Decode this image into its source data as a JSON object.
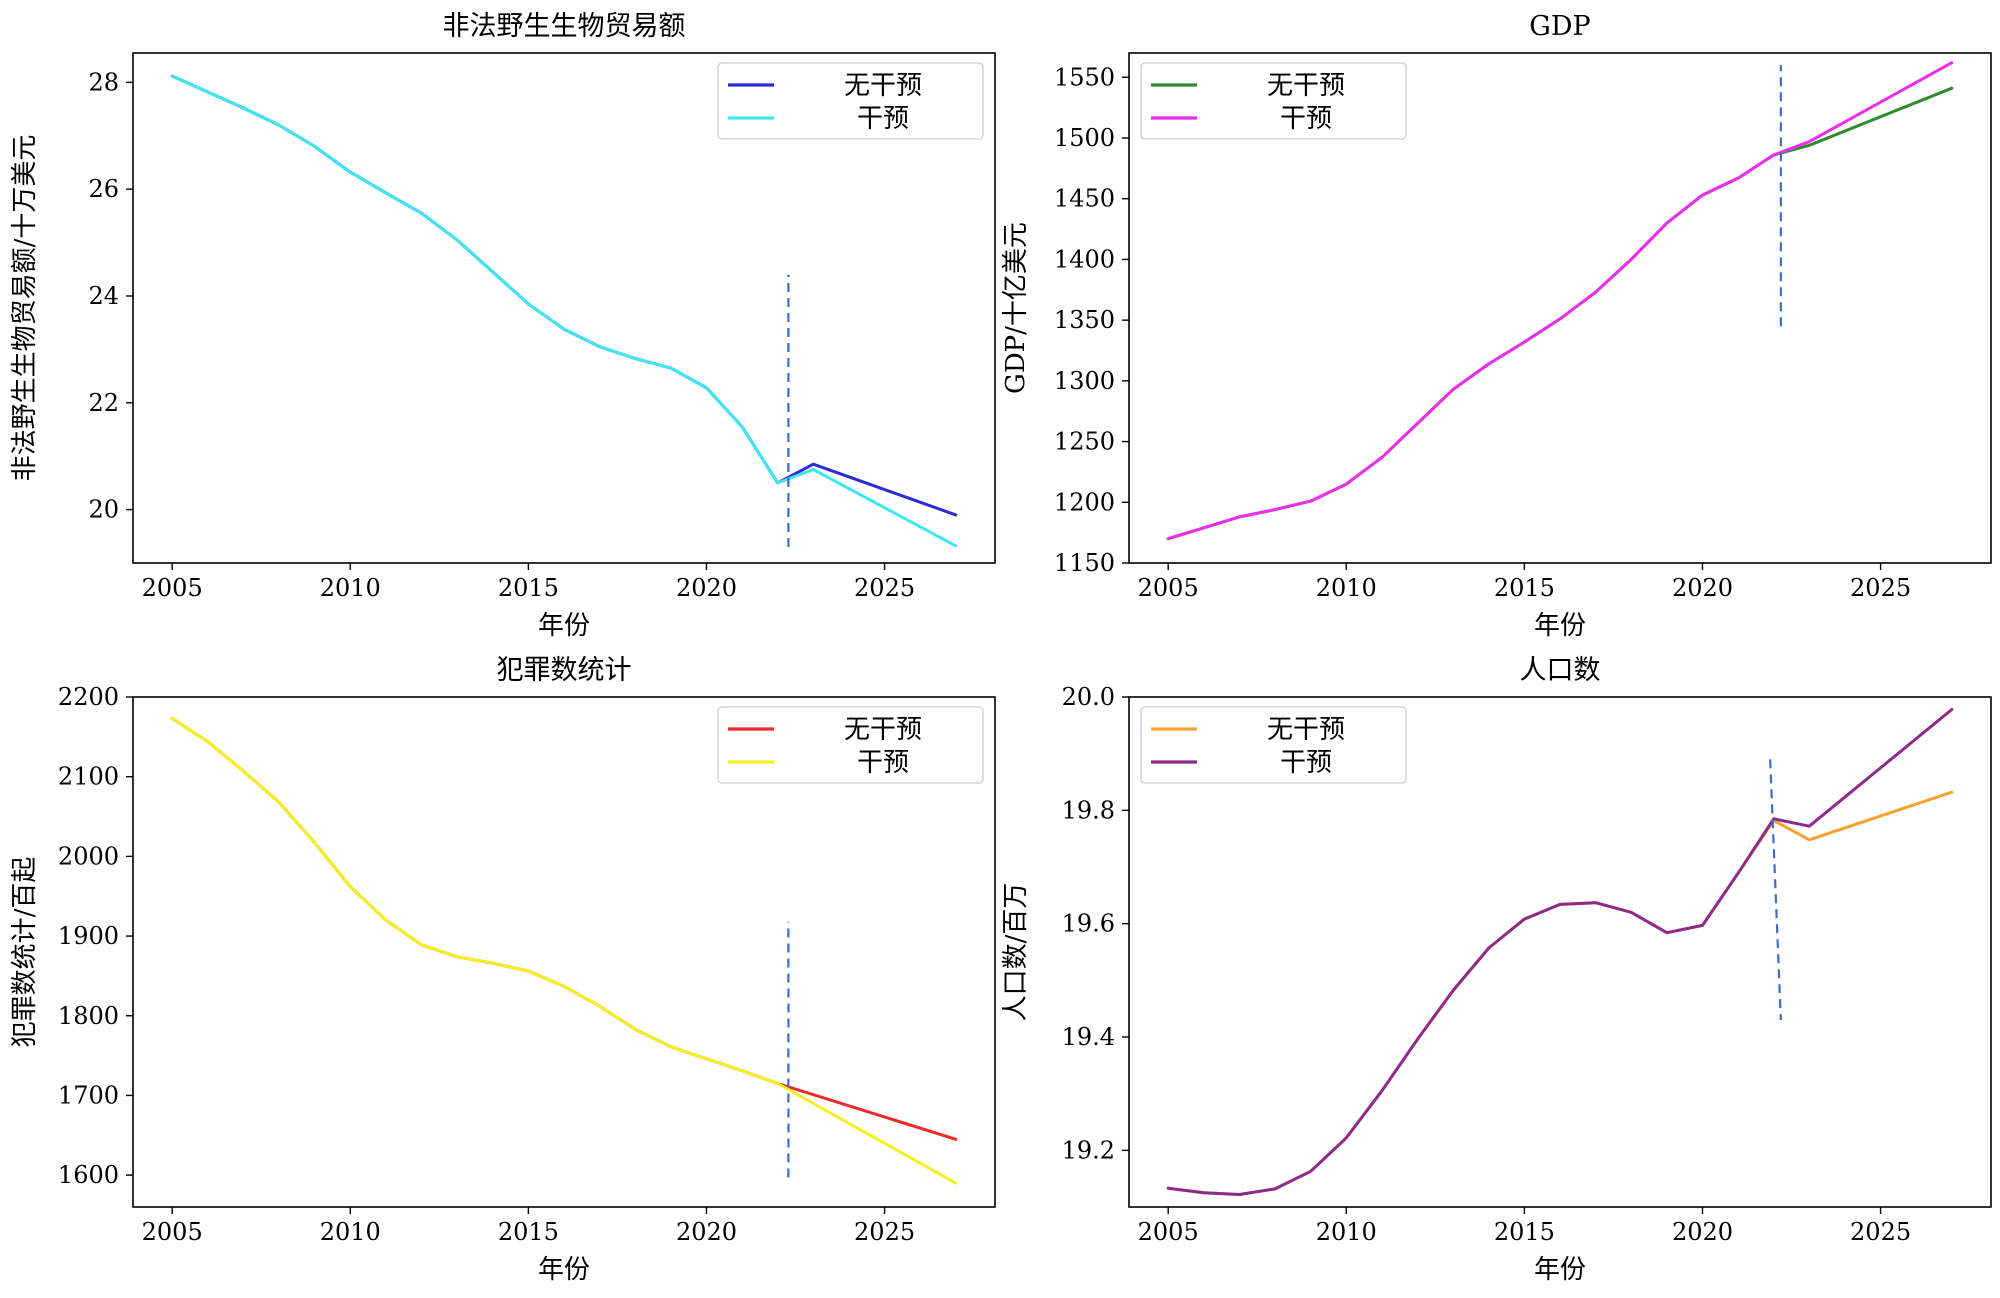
{
  "chart_data": [
    {
      "type": "line",
      "title": "非法野生生物贸易额",
      "xlabel": "年份",
      "ylabel": "非法野生生物贸易额/十万美元",
      "xlim": [
        2003.9,
        2028.1
      ],
      "ylim": [
        19.0,
        28.55
      ],
      "xticks": [
        2005,
        2010,
        2015,
        2020,
        2025
      ],
      "yticks": [
        20,
        22,
        24,
        26,
        28
      ],
      "legend_position": "top-right",
      "series": [
        {
          "name": "无干预",
          "color": "#2b2bdc",
          "x": [
            2005,
            2006,
            2007,
            2008,
            2009,
            2010,
            2011,
            2012,
            2013,
            2014,
            2015,
            2016,
            2017,
            2018,
            2019,
            2020,
            2021,
            2022,
            2023,
            2027
          ],
          "values": [
            28.12,
            27.82,
            27.52,
            27.2,
            26.8,
            26.32,
            25.93,
            25.55,
            25.05,
            24.45,
            23.85,
            23.38,
            23.05,
            22.83,
            22.65,
            22.28,
            21.55,
            20.5,
            20.85,
            19.9
          ]
        },
        {
          "name": "干预",
          "color": "#3fe6f0",
          "x": [
            2005,
            2006,
            2007,
            2008,
            2009,
            2010,
            2011,
            2012,
            2013,
            2014,
            2015,
            2016,
            2017,
            2018,
            2019,
            2020,
            2021,
            2022,
            2023,
            2027
          ],
          "values": [
            28.12,
            27.82,
            27.52,
            27.2,
            26.8,
            26.32,
            25.93,
            25.55,
            25.05,
            24.45,
            23.85,
            23.38,
            23.05,
            22.83,
            22.65,
            22.28,
            21.55,
            20.5,
            20.75,
            19.32
          ]
        }
      ],
      "vline": {
        "x": 2022.3,
        "y0": 19.3,
        "y1": 24.4
      }
    },
    {
      "type": "line",
      "title": "GDP",
      "xlabel": "年份",
      "ylabel": "GDP/十亿美元",
      "xlim": [
        2003.9,
        2028.1
      ],
      "ylim": [
        1150,
        1570
      ],
      "xticks": [
        2005,
        2010,
        2015,
        2020,
        2025
      ],
      "yticks": [
        1150,
        1200,
        1250,
        1300,
        1350,
        1400,
        1450,
        1500,
        1550
      ],
      "legend_position": "top-left",
      "series": [
        {
          "name": "无干预",
          "color": "#2e8b2e",
          "x": [
            2005,
            2006,
            2007,
            2008,
            2009,
            2010,
            2011,
            2012,
            2013,
            2014,
            2015,
            2016,
            2017,
            2018,
            2019,
            2020,
            2021,
            2022,
            2023,
            2027
          ],
          "values": [
            1170,
            1179,
            1188,
            1194,
            1201,
            1215,
            1237,
            1265,
            1293,
            1314,
            1332,
            1351,
            1373,
            1400,
            1430,
            1453,
            1467,
            1486,
            1494,
            1541
          ]
        },
        {
          "name": "干预",
          "color": "#ee2cee",
          "x": [
            2005,
            2006,
            2007,
            2008,
            2009,
            2010,
            2011,
            2012,
            2013,
            2014,
            2015,
            2016,
            2017,
            2018,
            2019,
            2020,
            2021,
            2022,
            2023,
            2027
          ],
          "values": [
            1170,
            1179,
            1188,
            1194,
            1201,
            1215,
            1237,
            1265,
            1293,
            1314,
            1332,
            1351,
            1373,
            1400,
            1430,
            1453,
            1467,
            1486,
            1497,
            1562
          ]
        }
      ],
      "vline": {
        "x": 2022.2,
        "y0": 1345,
        "y1": 1560
      }
    },
    {
      "type": "line",
      "title": "犯罪数统计",
      "xlabel": "年份",
      "ylabel": "犯罪数统计/百起",
      "xlim": [
        2003.9,
        2028.1
      ],
      "ylim": [
        1560,
        2200
      ],
      "xticks": [
        2005,
        2010,
        2015,
        2020,
        2025
      ],
      "yticks": [
        1600,
        1700,
        1800,
        1900,
        2000,
        2100,
        2200
      ],
      "legend_position": "top-right",
      "series": [
        {
          "name": "无干预",
          "color": "#ee2a2a",
          "x": [
            2005,
            2006,
            2007,
            2008,
            2009,
            2010,
            2011,
            2012,
            2013,
            2014,
            2015,
            2016,
            2017,
            2018,
            2019,
            2020,
            2021,
            2022,
            2027
          ],
          "values": [
            2173,
            2144,
            2107,
            2068,
            2017,
            1962,
            1920,
            1889,
            1874,
            1866,
            1856,
            1837,
            1812,
            1783,
            1761,
            1746,
            1731,
            1715,
            1645
          ]
        },
        {
          "name": "干预",
          "color": "#f4f020",
          "x": [
            2005,
            2006,
            2007,
            2008,
            2009,
            2010,
            2011,
            2012,
            2013,
            2014,
            2015,
            2016,
            2017,
            2018,
            2019,
            2020,
            2021,
            2022,
            2027
          ],
          "values": [
            2173,
            2144,
            2107,
            2068,
            2017,
            1962,
            1920,
            1889,
            1874,
            1866,
            1856,
            1837,
            1812,
            1783,
            1761,
            1746,
            1731,
            1715,
            1590
          ]
        }
      ],
      "vline": {
        "x": 2022.3,
        "y0": 1597,
        "y1": 1918
      }
    },
    {
      "type": "line",
      "title": "人口数",
      "xlabel": "年份",
      "ylabel": "人口数/百万",
      "xlim": [
        2003.9,
        2028.1
      ],
      "ylim": [
        19.1,
        20.0
      ],
      "xticks": [
        2005,
        2010,
        2015,
        2020,
        2025
      ],
      "yticks": [
        19.2,
        19.4,
        19.6,
        19.8,
        20.0
      ],
      "legend_position": "top-left",
      "series": [
        {
          "name": "无干预",
          "color": "#f6a22f",
          "x": [
            2005,
            2006,
            2007,
            2008,
            2009,
            2010,
            2011,
            2012,
            2013,
            2014,
            2015,
            2016,
            2017,
            2018,
            2019,
            2020,
            2021,
            2022,
            2023,
            2027
          ],
          "values": [
            19.133,
            19.125,
            19.122,
            19.132,
            19.163,
            19.222,
            19.305,
            19.396,
            19.482,
            19.557,
            19.608,
            19.634,
            19.637,
            19.62,
            19.584,
            19.597,
            19.689,
            19.782,
            19.748,
            19.832
          ]
        },
        {
          "name": "干预",
          "color": "#8e2a8e",
          "x": [
            2005,
            2006,
            2007,
            2008,
            2009,
            2010,
            2011,
            2012,
            2013,
            2014,
            2015,
            2016,
            2017,
            2018,
            2019,
            2020,
            2021,
            2022,
            2023,
            2027
          ],
          "values": [
            19.133,
            19.125,
            19.122,
            19.132,
            19.163,
            19.222,
            19.305,
            19.396,
            19.482,
            19.557,
            19.608,
            19.634,
            19.637,
            19.62,
            19.584,
            19.597,
            19.689,
            19.785,
            19.772,
            19.978
          ]
        }
      ],
      "vline": {
        "x1": 2021.9,
        "x2": 2022.2,
        "y0": 19.89,
        "y1": 19.43
      }
    }
  ]
}
